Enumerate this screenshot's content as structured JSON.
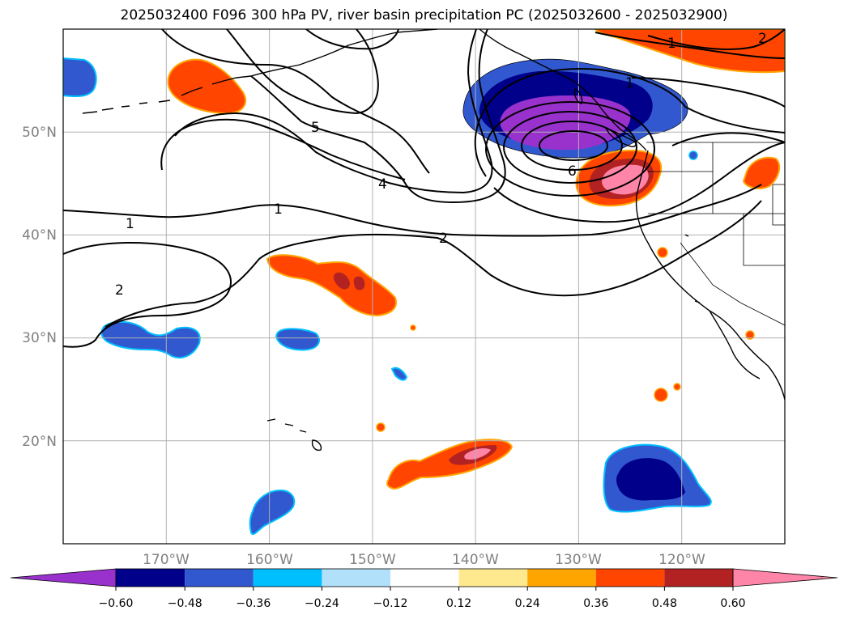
{
  "title": "2025032400 F096 300 hPa PV, river basin precipitation PC (2025032600 - 2025032900)",
  "map": {
    "projection": "plate-carree",
    "lon_range": [
      -180,
      -110
    ],
    "lat_range": [
      10,
      60
    ],
    "gridlines": true,
    "lat_labels": [
      {
        "lat": 50,
        "text": "50°N"
      },
      {
        "lat": 40,
        "text": "40°N"
      },
      {
        "lat": 30,
        "text": "30°N"
      },
      {
        "lat": 20,
        "text": "20°N"
      }
    ],
    "lon_labels": [
      {
        "lon": -170,
        "text": "170°W"
      },
      {
        "lon": -160,
        "text": "160°W"
      },
      {
        "lon": -150,
        "text": "150°W"
      },
      {
        "lon": -140,
        "text": "140°W"
      },
      {
        "lon": -130,
        "text": "130°W"
      },
      {
        "lon": -120,
        "text": "120°W"
      }
    ]
  },
  "pv_contour_labels": [
    {
      "text": "1"
    },
    {
      "text": "2"
    },
    {
      "text": "5"
    },
    {
      "text": "4"
    },
    {
      "text": "1"
    },
    {
      "text": "2"
    },
    {
      "text": "6"
    },
    {
      "text": "1"
    },
    {
      "text": "2"
    },
    {
      "text": "1"
    }
  ],
  "colorbar": {
    "extend": "both",
    "colors": [
      "#9932cc",
      "#00008b",
      "#3158cf",
      "#00bfff",
      "#b0e0fa",
      "#ffffff",
      "#ffe98f",
      "#ffa500",
      "#ff4500",
      "#b22222",
      "#ff85a8"
    ],
    "ticks": [
      "−0.60",
      "−0.48",
      "−0.36",
      "−0.24",
      "−0.12",
      "0.12",
      "0.24",
      "0.36",
      "0.48",
      "0.60"
    ]
  }
}
